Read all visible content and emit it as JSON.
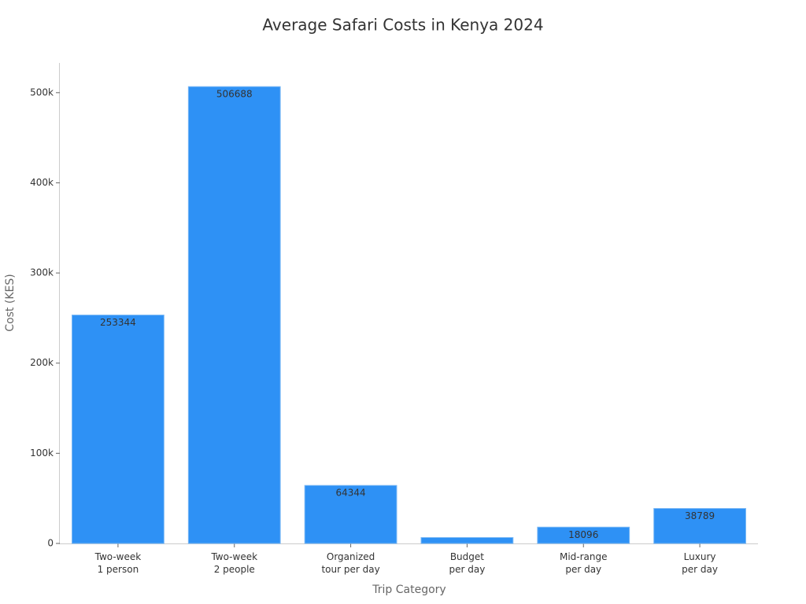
{
  "chart_data": {
    "type": "bar",
    "title": "Average Safari Costs in Kenya 2024",
    "x_label": "Trip Category",
    "y_label": "Cost (KES)",
    "categories": [
      "Two-week\n1 person",
      "Two-week\n2 people",
      "Organized\ntour per day",
      "Budget\nper day",
      "Mid-range\nper day",
      "Luxury\nper day"
    ],
    "values": [
      253344,
      506688,
      64344,
      6544,
      18096,
      38789
    ],
    "color": "#2e91f5",
    "ylim": [
      0,
      533000
    ],
    "yticks": [
      0,
      {
        "value": 100000,
        "label": "100k"
      },
      {
        "value": 200000,
        "label": "200k"
      },
      {
        "value": 300000,
        "label": "300k"
      },
      {
        "value": 400000,
        "label": "400k"
      },
      {
        "value": 500000,
        "label": "500k"
      }
    ],
    "grid": false
  }
}
